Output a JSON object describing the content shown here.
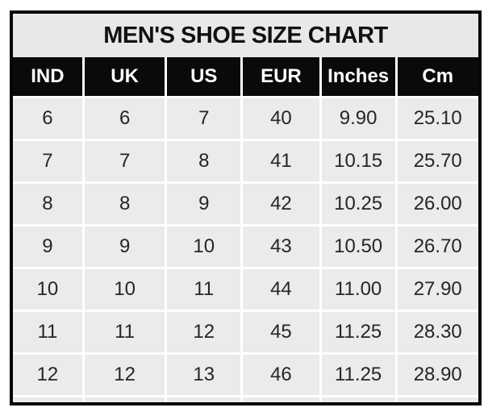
{
  "chart": {
    "colors": {
      "outer_border": "#060606",
      "title_background": "#e9e8e8",
      "header_background": "#0a0a0a",
      "header_text": "#ffffff",
      "cell_background": "#eceaea",
      "cell_text": "#262626",
      "gridline": "#ffffff"
    }
  },
  "chart_data": {
    "type": "table",
    "title": "MEN'S SHOE SIZE CHART",
    "columns": [
      "IND",
      "UK",
      "US",
      "EUR",
      "Inches",
      "Cm"
    ],
    "rows": [
      [
        "6",
        "6",
        "7",
        "40",
        "9.90",
        "25.10"
      ],
      [
        "7",
        "7",
        "8",
        "41",
        "10.15",
        "25.70"
      ],
      [
        "8",
        "8",
        "9",
        "42",
        "10.25",
        "26.00"
      ],
      [
        "9",
        "9",
        "10",
        "43",
        "10.50",
        "26.70"
      ],
      [
        "10",
        "10",
        "11",
        "44",
        "11.00",
        "27.90"
      ],
      [
        "11",
        "11",
        "12",
        "45",
        "11.25",
        "28.30"
      ],
      [
        "12",
        "12",
        "13",
        "46",
        "11.25",
        "28.90"
      ]
    ]
  }
}
